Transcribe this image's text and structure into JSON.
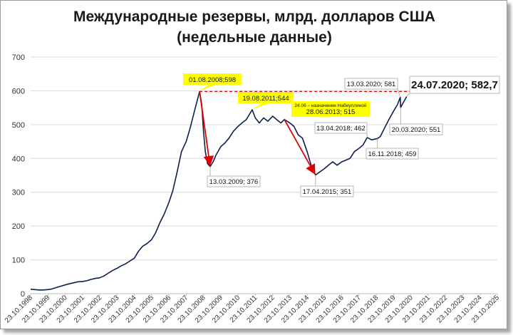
{
  "chart_data": {
    "type": "line",
    "title_line1": "Международные резервы, млрд. долларов США",
    "title_line2": "(недельные данные)",
    "ylim": [
      0,
      700
    ],
    "yticks": [
      0,
      100,
      200,
      300,
      400,
      500,
      600,
      700
    ],
    "xticks": [
      "23.10.1998",
      "23.10.1999",
      "23.10.2000",
      "23.10.2001",
      "23.10.2002",
      "23.10.2003",
      "23.10.2004",
      "23.10.2005",
      "23.10.2006",
      "23.10.2007",
      "23.10.2008",
      "23.10.2009",
      "23.10.2010",
      "23.10.2011",
      "23.10.2012",
      "23.10.2013",
      "23.10.2014",
      "23.10.2015",
      "23.10.2016",
      "23.10.2017",
      "23.10.2018",
      "23.10.2019",
      "23.10.2020",
      "23.10.2021",
      "23.10.2022",
      "23.10.2023",
      "23.10.2024",
      "23.10.2025"
    ],
    "xlim": [
      "1998-10-23",
      "2025-10-23"
    ],
    "grid": "horizontal",
    "line_color": "#0d1f4e",
    "series": [
      {
        "x": [
          "1998-10-23",
          "1999-01-15",
          "1999-04-15",
          "1999-07-15",
          "1999-10-23",
          "2000-01-15",
          "2000-04-15",
          "2000-07-15",
          "2000-10-23",
          "2001-01-15",
          "2001-04-15",
          "2001-07-15",
          "2001-10-23",
          "2002-01-15",
          "2002-04-15",
          "2002-07-15",
          "2002-10-23",
          "2003-01-15",
          "2003-04-15",
          "2003-07-15",
          "2003-10-23",
          "2004-01-15",
          "2004-04-15",
          "2004-07-15",
          "2004-10-23",
          "2005-01-15",
          "2005-04-15",
          "2005-07-15",
          "2005-10-23",
          "2006-01-15",
          "2006-04-15",
          "2006-07-15",
          "2006-10-23",
          "2007-01-15",
          "2007-04-15",
          "2007-07-15",
          "2007-10-23",
          "2008-01-15",
          "2008-04-15",
          "2008-08-01",
          "2008-09-15",
          "2008-10-23",
          "2008-12-01",
          "2009-01-15",
          "2009-03-13",
          "2009-05-15",
          "2009-07-15",
          "2009-10-23",
          "2010-01-15",
          "2010-04-15",
          "2010-07-15",
          "2010-10-23",
          "2011-01-15",
          "2011-04-15",
          "2011-08-19",
          "2011-10-23",
          "2012-01-15",
          "2012-04-15",
          "2012-07-15",
          "2012-10-23",
          "2013-01-15",
          "2013-04-15",
          "2013-06-28",
          "2013-10-23",
          "2014-01-15",
          "2014-04-15",
          "2014-07-15",
          "2014-10-23",
          "2015-01-15",
          "2015-04-17",
          "2015-07-15",
          "2015-10-23",
          "2016-01-15",
          "2016-04-15",
          "2016-07-15",
          "2016-10-23",
          "2017-01-15",
          "2017-04-15",
          "2017-07-15",
          "2017-10-23",
          "2018-01-15",
          "2018-04-13",
          "2018-07-15",
          "2018-11-16",
          "2019-01-15",
          "2019-04-15",
          "2019-07-15",
          "2019-10-23",
          "2020-01-15",
          "2020-03-13",
          "2020-03-20",
          "2020-05-15",
          "2020-07-24"
        ],
        "y": [
          13,
          12,
          11,
          11,
          12,
          14,
          18,
          22,
          26,
          29,
          32,
          35,
          36,
          38,
          42,
          45,
          47,
          52,
          60,
          68,
          75,
          82,
          88,
          96,
          105,
          125,
          140,
          148,
          160,
          180,
          210,
          235,
          270,
          305,
          360,
          420,
          450,
          490,
          540,
          598,
          560,
          480,
          420,
          385,
          376,
          390,
          410,
          435,
          445,
          460,
          480,
          495,
          505,
          515,
          544,
          520,
          505,
          520,
          510,
          525,
          515,
          505,
          515,
          505,
          495,
          470,
          460,
          420,
          380,
          351,
          360,
          370,
          380,
          390,
          380,
          390,
          395,
          400,
          420,
          430,
          440,
          462,
          455,
          459,
          465,
          490,
          515,
          540,
          560,
          581,
          551,
          565,
          582.7
        ]
      }
    ],
    "reference_line": {
      "value": 598,
      "color": "#e00000",
      "style": "dashed"
    },
    "annotations": [
      {
        "label": "01.08.2008;598",
        "x": "2008-08-01",
        "y": 598,
        "style": "yellow-callout"
      },
      {
        "label": "19.08.2011;544",
        "x": "2011-08-19",
        "y": 544,
        "style": "yellow-callout"
      },
      {
        "label_line1": "24.06 – назначение Набиуллиной",
        "label_line2": "28.06.2013; 515",
        "x": "2013-06-28",
        "y": 515,
        "style": "yellow-callout"
      },
      {
        "label": "13.03.2009; 376",
        "x": "2009-03-13",
        "y": 376,
        "style": "box"
      },
      {
        "label": "17.04.2015; 351",
        "x": "2015-04-17",
        "y": 351,
        "style": "box"
      },
      {
        "label": "13.04.2018; 462",
        "x": "2018-04-13",
        "y": 462,
        "style": "box"
      },
      {
        "label": "16.11.2018; 459",
        "x": "2018-11-16",
        "y": 459,
        "style": "box"
      },
      {
        "label": "13.03.2020; 581",
        "x": "2020-03-13",
        "y": 581,
        "style": "box"
      },
      {
        "label": "20.03.2020; 551",
        "x": "2020-03-20",
        "y": 551,
        "style": "box"
      },
      {
        "label": "24.07.2020; 582,7",
        "x": "2020-07-24",
        "y": 582.7,
        "style": "box-large"
      }
    ],
    "arrows": [
      {
        "from": [
          "2008-08-01",
          598
        ],
        "to": [
          "2009-03-13",
          376
        ],
        "color": "#e00000"
      },
      {
        "from": [
          "2013-06-28",
          515
        ],
        "to": [
          "2015-04-17",
          351
        ],
        "color": "#e00000"
      }
    ]
  }
}
